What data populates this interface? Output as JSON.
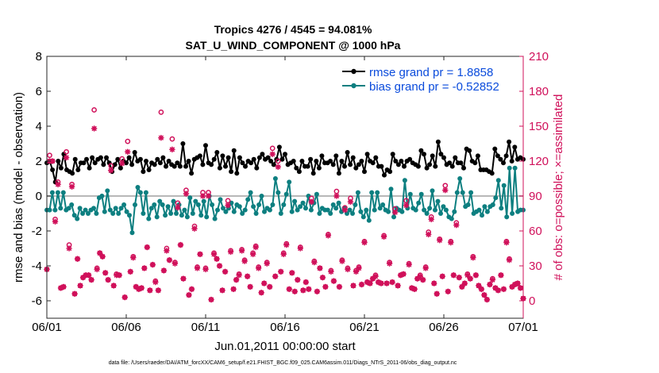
{
  "chart_data": {
    "type": "line",
    "title": "Tropics 4276 / 4545 = 94.081%",
    "subtitle": "SAT_U_WIND_COMPONENT @ 1000 hPa",
    "xlabel": "Jun.01,2011 00:00:00 start",
    "ylabel_left": "rmse and bias (model - observation)",
    "ylabel_right": "# of obs: o=possible; ×=assimilated",
    "footer": "data file: /Users/raeder/DAI/ATM_forcXX/CAM6_setup/f.e21.FHIST_BGC.f09_025.CAM6assim.011/Diags_NTrS_2011-06/obs_diag_output.nc",
    "xlim": [
      0,
      30
    ],
    "ylim_left": [
      -7,
      8
    ],
    "ylim_right": [
      -15,
      210
    ],
    "x_ticks": [
      0,
      5,
      10,
      15,
      20,
      25,
      30
    ],
    "x_tick_labels": [
      "06/01",
      "06/06",
      "06/11",
      "06/16",
      "06/21",
      "06/26",
      "07/01"
    ],
    "left_ticks": [
      -6,
      -4,
      -2,
      0,
      2,
      4,
      6,
      8
    ],
    "left_tick_labels": [
      "-6",
      "-4",
      "-2",
      "0",
      "2",
      "4",
      "6",
      "8"
    ],
    "right_ticks": [
      0,
      30,
      60,
      90,
      120,
      150,
      180,
      210
    ],
    "right_tick_labels": [
      "0",
      "30",
      "60",
      "90",
      "120",
      "150",
      "180",
      "210"
    ],
    "zero_line": 0,
    "series": [
      {
        "name": "rmse grand pr = 1.8858",
        "axis": "left",
        "color": "#000000",
        "marker": "dot",
        "values": [
          1.9,
          2.0,
          1.5,
          0.8,
          2.0,
          1.6,
          2.4,
          1.5,
          1.4,
          1.3,
          2.1,
          1.5,
          1.9,
          1.9,
          2.1,
          1.6,
          2.2,
          1.9,
          2.1,
          2.2,
          1.8,
          2.2,
          1.9,
          1.4,
          1.8,
          2.1,
          1.6,
          2.0,
          1.9,
          2.2,
          1.8,
          2.5,
          2.0,
          2.1,
          1.4,
          2.0,
          1.5,
          1.9,
          1.8,
          2.1,
          1.9,
          2.2,
          1.7,
          2.0,
          1.8,
          1.7,
          1.9,
          1.7,
          3.0,
          1.7,
          2.0,
          1.3,
          2.1,
          2.2,
          2.3,
          1.8,
          2.9,
          1.9,
          1.8,
          2.1,
          2.5,
          1.6,
          2.3,
          1.7,
          2.2,
          1.4,
          2.6,
          1.3,
          2.2,
          1.9,
          1.7,
          2.0,
          1.9,
          2.1,
          1.6,
          2.2,
          2.4,
          2.1,
          2.2,
          2.0,
          1.8,
          2.1,
          2.8,
          2.1,
          2.4,
          1.8,
          1.9,
          2.0,
          1.6,
          1.4,
          2.0,
          1.7,
          1.7,
          2.1,
          1.3,
          2.0,
          1.6,
          2.3,
          1.9,
          1.9,
          2.0,
          1.8,
          2.3,
          1.3,
          2.0,
          1.7,
          2.5,
          1.8,
          2.2,
          1.6,
          1.8,
          2.0,
          1.4,
          2.4,
          2.0,
          1.9,
          2.2,
          1.7,
          1.7,
          1.2,
          1.5,
          1.4,
          2.4,
          2.0,
          1.8,
          2.0,
          1.7,
          2.0,
          2.1,
          1.9,
          1.8,
          1.7,
          2.6,
          2.4,
          1.6,
          1.8,
          2.3,
          1.7,
          3.1,
          2.4,
          2.2,
          1.8,
          1.9,
          1.7,
          2.2,
          1.9,
          1.9,
          1.6,
          2.7,
          2.6,
          2.0,
          1.9,
          2.3,
          1.5,
          1.5,
          1.5,
          1.4,
          1.3,
          2.7,
          2.3,
          2.1,
          1.9,
          2.3,
          3.1,
          2.0,
          2.8,
          2.1,
          2.2,
          2.1
        ]
      },
      {
        "name": "bias grand pr = -0.52852",
        "axis": "left",
        "color": "#0d7f80",
        "marker": "dot",
        "values": [
          -0.8,
          -0.8,
          0.2,
          -0.8,
          0.2,
          -0.7,
          0.2,
          -0.8,
          -0.7,
          -0.5,
          -1.1,
          -1.3,
          -0.7,
          -1.0,
          -0.8,
          -1.0,
          -0.8,
          -0.7,
          -1.0,
          -0.1,
          0.0,
          -0.9,
          0.3,
          -0.8,
          -1.0,
          -0.7,
          -1.0,
          -0.7,
          -0.5,
          -0.9,
          -1.1,
          -2.1,
          -0.5,
          0.5,
          0.2,
          -1.0,
          0.2,
          -1.3,
          -0.7,
          -0.5,
          -1.2,
          -0.3,
          -0.5,
          -1.1,
          -0.6,
          -1.0,
          -0.3,
          -1.0,
          -0.5,
          -1.1,
          -0.8,
          -1.2,
          -0.1,
          -1.0,
          -0.3,
          -0.5,
          -1.1,
          -0.3,
          -1.2,
          0.0,
          -0.5,
          -1.3,
          -0.8,
          -0.2,
          -0.7,
          -0.9,
          -0.7,
          -0.4,
          -0.9,
          -0.5,
          -0.6,
          -1.0,
          -0.8,
          -0.2,
          0.2,
          -0.6,
          -1.0,
          -0.5,
          0.0,
          -0.9,
          -0.7,
          -0.8,
          -0.5,
          1.0,
          0.2,
          -1.0,
          -0.5,
          0.1,
          0.8,
          -0.9,
          -0.3,
          -0.8,
          -0.6,
          -0.4,
          -0.7,
          0.0,
          -0.8,
          -0.4,
          0.1,
          -1.0,
          -0.7,
          -0.8,
          -0.8,
          -1.0,
          -0.5,
          -0.7,
          -0.4,
          -0.9,
          -0.7,
          -1.0,
          -0.8,
          -1.0,
          -0.5,
          0.2,
          -0.9,
          -1.2,
          -0.8,
          -1.4,
          0.2,
          -0.8,
          0.2,
          -0.7,
          -0.5,
          -0.8,
          -0.9,
          0.4,
          -1.2,
          -0.7,
          -0.8,
          -0.9,
          0.9,
          -0.7,
          0.1,
          -0.7,
          -0.8,
          -0.4,
          0.1,
          -0.8,
          -1.0,
          -0.7,
          0.3,
          -0.8,
          -0.3,
          -1.0,
          -0.6,
          -0.8,
          -1.2,
          -1.3,
          -0.9,
          0.2,
          1.0,
          0.2,
          -0.6,
          -0.5,
          0.2,
          -1.0,
          -0.9,
          -0.8,
          -1.1,
          -0.6,
          -0.9,
          -0.6,
          -0.5,
          -0.1,
          0.9,
          -0.7,
          0.6,
          -1.2,
          1.6,
          -1.0,
          1.6,
          -0.9,
          -0.8,
          -0.8
        ]
      },
      {
        "name": "possible",
        "axis": "right",
        "color": "#d0105a",
        "marker": "circle",
        "values": [
          27,
          125,
          120,
          70,
          102,
          11,
          12,
          128,
          48,
          100,
          6,
          36,
          13,
          20,
          22,
          22,
          18,
          164,
          28,
          41,
          38,
          24,
          18,
          116,
          13,
          23,
          22,
          122,
          3,
          137,
          25,
          38,
          12,
          10,
          11,
          28,
          46,
          9,
          31,
          17,
          9,
          162,
          26,
          45,
          35,
          139,
          33,
          84,
          48,
          19,
          95,
          5,
          10,
          64,
          29,
          40,
          93,
          28,
          93,
          1,
          41,
          36,
          30,
          9,
          25,
          86,
          43,
          10,
          18,
          23,
          44,
          35,
          21,
          12,
          41,
          47,
          29,
          7,
          15,
          33,
          12,
          131,
          21,
          120,
          25,
          41,
          49,
          10,
          24,
          8,
          18,
          46,
          9,
          16,
          10,
          88,
          34,
          8,
          28,
          20,
          12,
          57,
          26,
          17,
          94,
          12,
          35,
          80,
          28,
          88,
          13,
          26,
          29,
          14,
          51,
          16,
          15,
          19,
          22,
          16,
          15,
          56,
          15,
          33,
          16,
          79,
          13,
          22,
          23,
          86,
          32,
          11,
          10,
          19,
          22,
          18,
          29,
          59,
          72,
          15,
          6,
          53,
          21,
          99,
          8,
          51,
          22,
          67,
          20,
          12,
          15,
          23,
          19,
          38,
          22,
          13,
          10,
          5,
          1,
          14,
          19,
          11,
          9,
          22,
          10,
          51,
          36,
          12,
          14,
          15,
          11,
          2
        ]
      },
      {
        "name": "assimilated",
        "axis": "right",
        "color": "#d0105a",
        "marker": "star",
        "values": [
          27,
          120,
          120,
          68,
          100,
          11,
          12,
          123,
          45,
          98,
          6,
          36,
          13,
          20,
          22,
          22,
          18,
          148,
          27,
          41,
          38,
          24,
          18,
          112,
          13,
          22,
          22,
          118,
          3,
          128,
          25,
          37,
          12,
          10,
          11,
          28,
          46,
          9,
          31,
          16,
          9,
          140,
          26,
          43,
          35,
          130,
          32,
          80,
          48,
          19,
          92,
          5,
          10,
          62,
          28,
          40,
          90,
          27,
          90,
          1,
          40,
          36,
          30,
          9,
          25,
          82,
          42,
          10,
          18,
          22,
          43,
          34,
          21,
          12,
          40,
          46,
          28,
          7,
          15,
          32,
          12,
          126,
          21,
          115,
          25,
          40,
          48,
          10,
          24,
          8,
          18,
          45,
          9,
          16,
          10,
          85,
          33,
          8,
          28,
          20,
          12,
          56,
          25,
          17,
          90,
          12,
          34,
          78,
          27,
          85,
          13,
          25,
          28,
          14,
          50,
          16,
          15,
          19,
          21,
          16,
          15,
          55,
          15,
          32,
          16,
          76,
          13,
          22,
          23,
          82,
          31,
          11,
          10,
          19,
          21,
          18,
          28,
          57,
          70,
          15,
          6,
          52,
          21,
          95,
          8,
          50,
          22,
          65,
          20,
          12,
          15,
          22,
          19,
          37,
          22,
          13,
          10,
          5,
          1,
          14,
          18,
          11,
          9,
          22,
          10,
          50,
          35,
          12,
          14,
          15,
          11,
          2
        ]
      }
    ],
    "legend": {
      "position": "top-right",
      "entries": [
        "rmse grand pr = 1.8858",
        "bias grand pr = -0.52852"
      ]
    }
  }
}
